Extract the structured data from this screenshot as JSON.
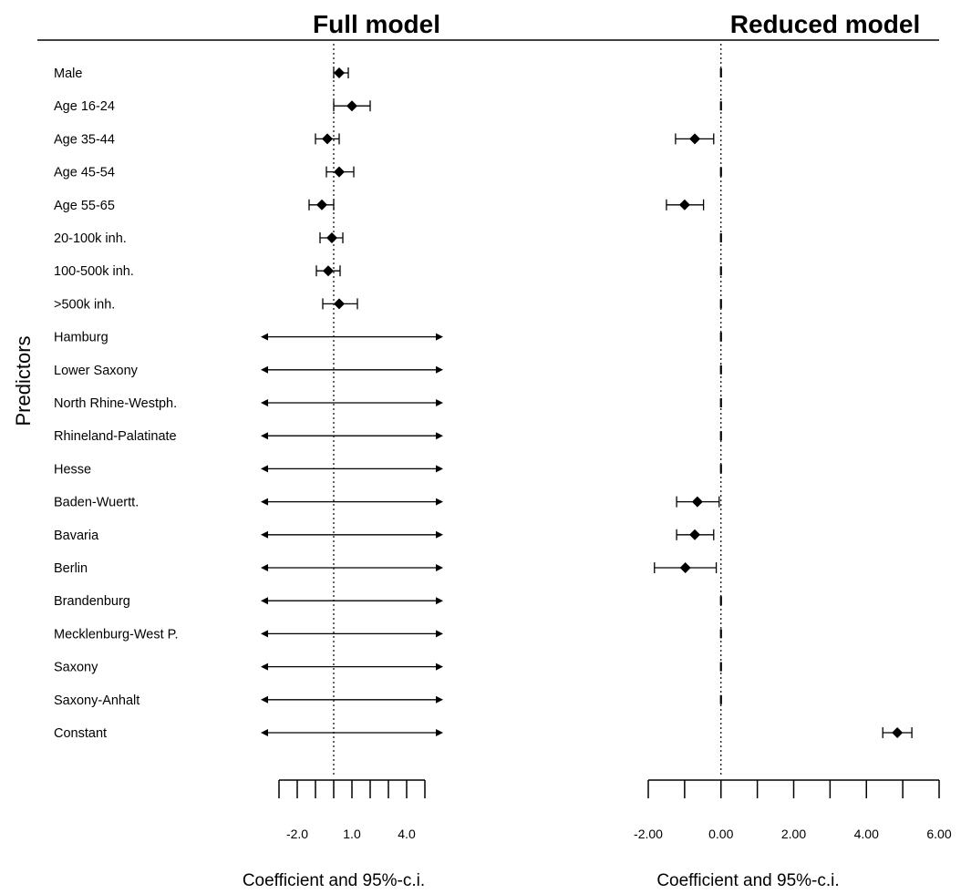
{
  "y_axis_title": "Predictors",
  "predictors": [
    "Male",
    "Age 16-24",
    "Age 35-44",
    "Age 45-54",
    "Age 55-65",
    "20-100k inh.",
    "100-500k inh.",
    ">500k inh.",
    "Hamburg",
    "Lower Saxony",
    "North Rhine-Westph.",
    "Rhineland-Palatinate",
    "Hesse",
    "Baden-Wuertt.",
    "Bavaria",
    "Berlin",
    "Brandenburg",
    "Mecklenburg-West P.",
    "Saxony",
    "Saxony-Anhalt",
    "Constant"
  ],
  "chart_data": [
    {
      "type": "scatter",
      "title": "Full model",
      "xlabel": "Coefficient and 95%-c.i.",
      "xlim": [
        -3.0,
        5.0
      ],
      "x_ticks": [
        -3.0,
        -2.0,
        -1.0,
        0.0,
        1.0,
        2.0,
        3.0,
        4.0,
        5.0,
        6.0
      ],
      "x_tick_labels": [
        {
          "value": -2.0,
          "label": "-2.0"
        },
        {
          "value": 1.0,
          "label": "1.0"
        },
        {
          "value": 4.0,
          "label": "4.0"
        }
      ],
      "reference_line": 0.0,
      "points": [
        {
          "predictor": "Male",
          "estimate": 0.3,
          "lower": 0.0,
          "upper": 0.8,
          "truncated": false
        },
        {
          "predictor": "Age 16-24",
          "estimate": 1.0,
          "lower": 0.0,
          "upper": 2.0,
          "truncated": false
        },
        {
          "predictor": "Age 35-44",
          "estimate": -0.35,
          "lower": -1.0,
          "upper": 0.3,
          "truncated": false
        },
        {
          "predictor": "Age 45-54",
          "estimate": 0.3,
          "lower": -0.4,
          "upper": 1.1,
          "truncated": false
        },
        {
          "predictor": "Age 55-65",
          "estimate": -0.65,
          "lower": -1.35,
          "upper": 0.0,
          "truncated": false
        },
        {
          "predictor": "20-100k inh.",
          "estimate": -0.1,
          "lower": -0.75,
          "upper": 0.5,
          "truncated": false
        },
        {
          "predictor": "100-500k inh.",
          "estimate": -0.3,
          "lower": -0.95,
          "upper": 0.35,
          "truncated": false
        },
        {
          "predictor": ">500k inh.",
          "estimate": 0.3,
          "lower": -0.6,
          "upper": 1.3,
          "truncated": false
        },
        {
          "predictor": "Hamburg",
          "estimate": null,
          "lower": -3.0,
          "upper": 7.0,
          "truncated": true
        },
        {
          "predictor": "Lower Saxony",
          "estimate": null,
          "lower": -3.0,
          "upper": 7.0,
          "truncated": true
        },
        {
          "predictor": "North Rhine-Westph.",
          "estimate": null,
          "lower": -3.0,
          "upper": 7.0,
          "truncated": true
        },
        {
          "predictor": "Rhineland-Palatinate",
          "estimate": null,
          "lower": -3.0,
          "upper": 7.0,
          "truncated": true
        },
        {
          "predictor": "Hesse",
          "estimate": null,
          "lower": -3.0,
          "upper": 7.0,
          "truncated": true
        },
        {
          "predictor": "Baden-Wuertt.",
          "estimate": null,
          "lower": -3.0,
          "upper": 7.0,
          "truncated": true
        },
        {
          "predictor": "Bavaria",
          "estimate": null,
          "lower": -3.0,
          "upper": 7.0,
          "truncated": true
        },
        {
          "predictor": "Berlin",
          "estimate": null,
          "lower": -3.0,
          "upper": 7.0,
          "truncated": true
        },
        {
          "predictor": "Brandenburg",
          "estimate": null,
          "lower": -3.0,
          "upper": 7.0,
          "truncated": true
        },
        {
          "predictor": "Mecklenburg-West P.",
          "estimate": null,
          "lower": -3.0,
          "upper": 7.0,
          "truncated": true
        },
        {
          "predictor": "Saxony",
          "estimate": null,
          "lower": -3.0,
          "upper": 7.0,
          "truncated": true
        },
        {
          "predictor": "Saxony-Anhalt",
          "estimate": null,
          "lower": -3.0,
          "upper": 7.0,
          "truncated": true
        },
        {
          "predictor": "Constant",
          "estimate": null,
          "lower": -3.0,
          "upper": 7.0,
          "truncated": true
        }
      ]
    },
    {
      "type": "scatter",
      "title": "Reduced model",
      "xlabel": "Coefficient and 95%-c.i.",
      "xlim": [
        -2.0,
        6.0
      ],
      "x_ticks": [
        -2.0,
        -1.0,
        0.0,
        1.0,
        2.0,
        3.0,
        4.0,
        5.0,
        6.0
      ],
      "x_tick_labels": [
        {
          "value": -2.0,
          "label": "-2.00"
        },
        {
          "value": 0.0,
          "label": "0.00"
        },
        {
          "value": 2.0,
          "label": "2.00"
        },
        {
          "value": 4.0,
          "label": "4.00"
        },
        {
          "value": 6.0,
          "label": "6.00"
        }
      ],
      "reference_line": 0.0,
      "points": [
        {
          "predictor": "Male",
          "estimate": 0.0,
          "lower": 0.0,
          "upper": 0.0
        },
        {
          "predictor": "Age 16-24",
          "estimate": 0.0,
          "lower": 0.0,
          "upper": 0.0
        },
        {
          "predictor": "Age 35-44",
          "estimate": -0.72,
          "lower": -1.25,
          "upper": -0.2
        },
        {
          "predictor": "Age 45-54",
          "estimate": 0.0,
          "lower": 0.0,
          "upper": 0.0
        },
        {
          "predictor": "Age 55-65",
          "estimate": -1.0,
          "lower": -1.5,
          "upper": -0.48
        },
        {
          "predictor": "20-100k inh.",
          "estimate": 0.0,
          "lower": 0.0,
          "upper": 0.0
        },
        {
          "predictor": "100-500k inh.",
          "estimate": 0.0,
          "lower": 0.0,
          "upper": 0.0
        },
        {
          "predictor": ">500k inh.",
          "estimate": 0.0,
          "lower": 0.0,
          "upper": 0.0
        },
        {
          "predictor": "Hamburg",
          "estimate": 0.0,
          "lower": 0.0,
          "upper": 0.0
        },
        {
          "predictor": "Lower Saxony",
          "estimate": 0.0,
          "lower": 0.0,
          "upper": 0.0
        },
        {
          "predictor": "North Rhine-Westph.",
          "estimate": 0.0,
          "lower": 0.0,
          "upper": 0.0
        },
        {
          "predictor": "Rhineland-Palatinate",
          "estimate": 0.0,
          "lower": 0.0,
          "upper": 0.0
        },
        {
          "predictor": "Hesse",
          "estimate": 0.0,
          "lower": 0.0,
          "upper": 0.0
        },
        {
          "predictor": "Baden-Wuertt.",
          "estimate": -0.65,
          "lower": -1.22,
          "upper": -0.05
        },
        {
          "predictor": "Bavaria",
          "estimate": -0.72,
          "lower": -1.22,
          "upper": -0.2
        },
        {
          "predictor": "Berlin",
          "estimate": -0.98,
          "lower": -1.83,
          "upper": -0.13
        },
        {
          "predictor": "Brandenburg",
          "estimate": 0.0,
          "lower": 0.0,
          "upper": 0.0
        },
        {
          "predictor": "Mecklenburg-West P.",
          "estimate": 0.0,
          "lower": 0.0,
          "upper": 0.0
        },
        {
          "predictor": "Saxony",
          "estimate": 0.0,
          "lower": 0.0,
          "upper": 0.0
        },
        {
          "predictor": "Saxony-Anhalt",
          "estimate": 0.0,
          "lower": 0.0,
          "upper": 0.0
        },
        {
          "predictor": "Constant",
          "estimate": 4.85,
          "lower": 4.45,
          "upper": 5.25
        }
      ]
    }
  ]
}
